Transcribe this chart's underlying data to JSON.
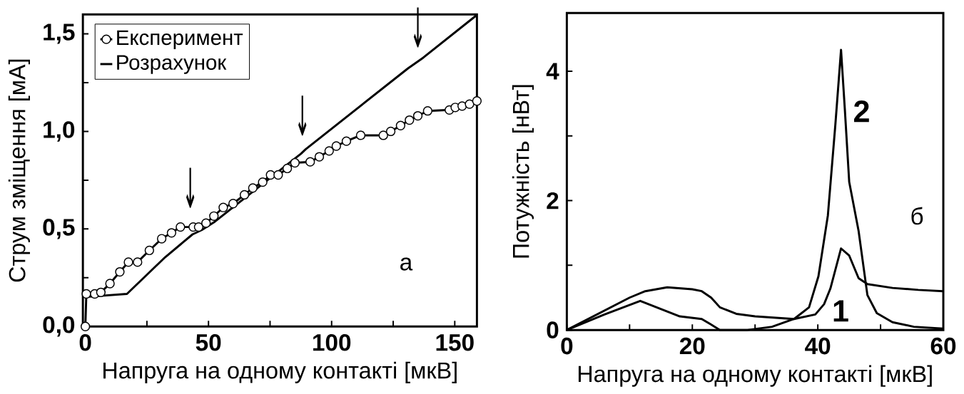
{
  "chart_data": [
    {
      "type": "line",
      "xlabel": "Напруга на одному контакті [мкВ]",
      "ylabel": "Струм зміщення [мА]",
      "xlim": [
        -1,
        159
      ],
      "ylim": [
        0,
        1.6
      ],
      "xticks": [
        0,
        {
          "value": 25,
          "label": null
        },
        50,
        {
          "value": 75,
          "label": null
        },
        100,
        {
          "value": 125,
          "label": null
        },
        150
      ],
      "yticks": [
        {
          "value": 0,
          "label": "0,0"
        },
        {
          "value": 0.25,
          "label": null
        },
        {
          "value": 0.5,
          "label": "0,5"
        },
        {
          "value": 0.75,
          "label": null
        },
        {
          "value": 1.0,
          "label": "1,0"
        },
        {
          "value": 1.25,
          "label": null
        },
        {
          "value": 1.5,
          "label": "1,5"
        }
      ],
      "legend": "top left",
      "line_style": "solid",
      "series": [
        {
          "name": "Експеримент",
          "color": "#000000",
          "marker": "circle",
          "x": [
            0,
            0.4,
            3.8,
            6.3,
            10,
            14,
            17.5,
            21.2,
            26,
            31,
            35,
            38.6,
            43.8,
            46,
            49,
            52.2,
            56,
            60,
            64.6,
            68,
            72,
            75.2,
            78.3,
            82,
            85.1,
            91.3,
            95,
            99,
            101.9,
            106,
            111.8,
            121,
            124,
            128,
            131.6,
            135,
            139,
            147.8,
            150.2,
            153,
            156,
            159
          ],
          "values": [
            0,
            0.167,
            0.167,
            0.175,
            0.22,
            0.28,
            0.33,
            0.33,
            0.39,
            0.45,
            0.48,
            0.51,
            0.51,
            0.51,
            0.53,
            0.566,
            0.61,
            0.63,
            0.675,
            0.71,
            0.74,
            0.777,
            0.777,
            0.81,
            0.839,
            0.844,
            0.87,
            0.9,
            0.925,
            0.95,
            0.98,
            0.98,
            1.0,
            1.03,
            1.058,
            1.08,
            1.105,
            1.11,
            1.123,
            1.13,
            1.14,
            1.156
          ]
        },
        {
          "name": "Розрахунок",
          "color": "#000000",
          "marker": "none",
          "x": [
            0.7,
            16.9,
            32.4,
            43.5,
            47.3,
            52.2,
            87.6,
            89.5,
            131,
            137.2,
            159
          ],
          "values": [
            0.152,
            0.167,
            0.355,
            0.472,
            0.495,
            0.534,
            0.886,
            0.909,
            1.323,
            1.378,
            1.597
          ]
        }
      ],
      "annotations": [
        "а",
        "↓",
        "↓",
        "↓"
      ]
    },
    {
      "type": "line",
      "xlabel": "Напруга на одному контакті [мкВ]",
      "ylabel": "Потужність [нВт]",
      "xlim": [
        0,
        60
      ],
      "ylim": [
        0,
        4.9
      ],
      "xticks": [
        0,
        {
          "value": 10,
          "label": null
        },
        20,
        {
          "value": 30,
          "label": null
        },
        40,
        {
          "value": 50,
          "label": null
        },
        60
      ],
      "yticks": [
        0,
        {
          "value": 1,
          "label": null
        },
        2,
        {
          "value": 3,
          "label": null
        },
        4
      ],
      "line_style": "solid",
      "marker": "none",
      "series": [
        {
          "color": "#000000",
          "x": [
            0,
            5,
            10,
            12.5,
            16,
            20,
            21.5,
            23,
            24.4,
            27,
            30,
            36.2,
            39.6,
            41,
            42,
            43.7,
            45,
            46.5,
            47.9,
            51.9,
            56,
            60
          ],
          "values": [
            0,
            0.25,
            0.5,
            0.6,
            0.66,
            0.63,
            0.6,
            0.5,
            0.35,
            0.25,
            0.21,
            0.17,
            0.24,
            0.4,
            0.64,
            1.26,
            1.15,
            0.8,
            0.71,
            0.65,
            0.62,
            0.6
          ]
        },
        {
          "color": "#000000",
          "x": [
            0,
            6,
            11.7,
            18,
            21.5,
            22.9,
            24.4,
            28.8,
            32.7,
            36.2,
            38.6,
            40.1,
            41.6,
            42.8,
            43.7,
            44.3,
            45,
            46.5,
            47.9,
            49.4,
            51.9,
            55.3,
            60
          ],
          "values": [
            0,
            0.24,
            0.45,
            0.21,
            0.17,
            0.09,
            0,
            0,
            0.05,
            0.17,
            0.35,
            0.83,
            1.77,
            3.18,
            4.33,
            3.42,
            2.29,
            1.53,
            0.54,
            0.26,
            0.12,
            0.05,
            0.02
          ]
        }
      ],
      "annotations": [
        "б",
        "1",
        "2"
      ]
    }
  ]
}
